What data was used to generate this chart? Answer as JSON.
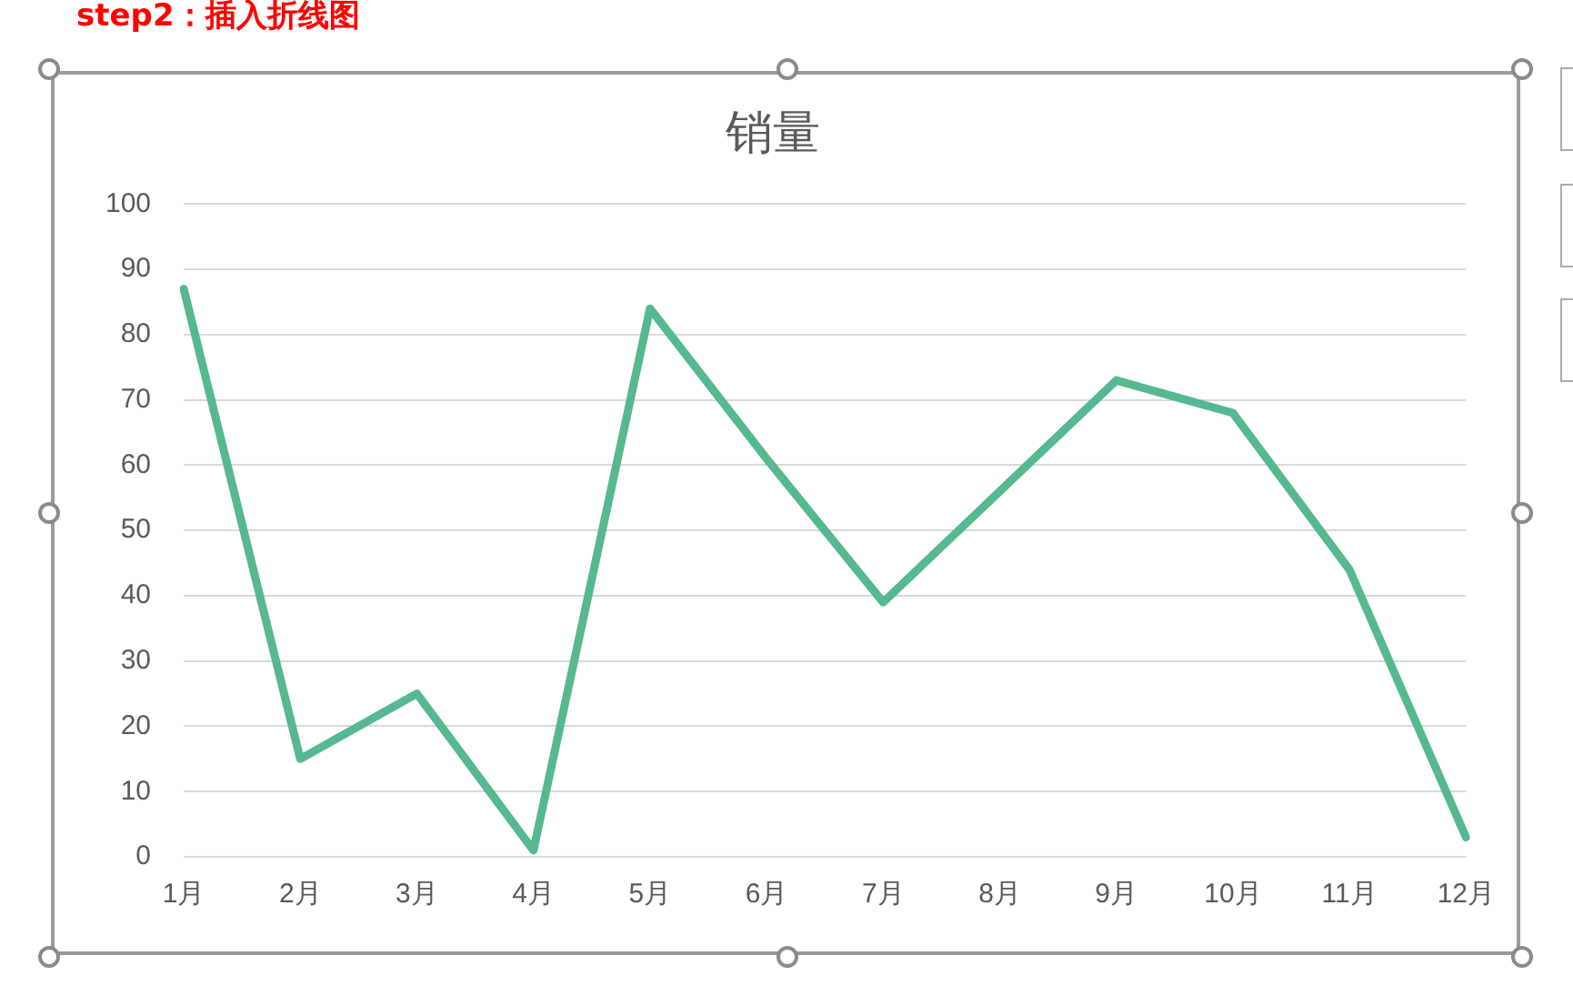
{
  "chart_data": {
    "type": "line",
    "title": "销量",
    "annotations": [
      "step2：插入折线图"
    ],
    "categories": [
      "1月",
      "2月",
      "3月",
      "4月",
      "5月",
      "6月",
      "7月",
      "8月",
      "9月",
      "10月",
      "11月",
      "12月"
    ],
    "series": [
      {
        "color": "#55b88f",
        "values": [
          87,
          15,
          25,
          1,
          84,
          61,
          39,
          56,
          73,
          68,
          44,
          3
        ]
      }
    ],
    "ylim": [
      0,
      100
    ],
    "yticks": [
      0,
      10,
      20,
      30,
      40,
      50,
      60,
      70,
      80,
      90,
      100
    ],
    "grid": "y",
    "legend": false,
    "marker": "none",
    "line_style": "solid"
  }
}
